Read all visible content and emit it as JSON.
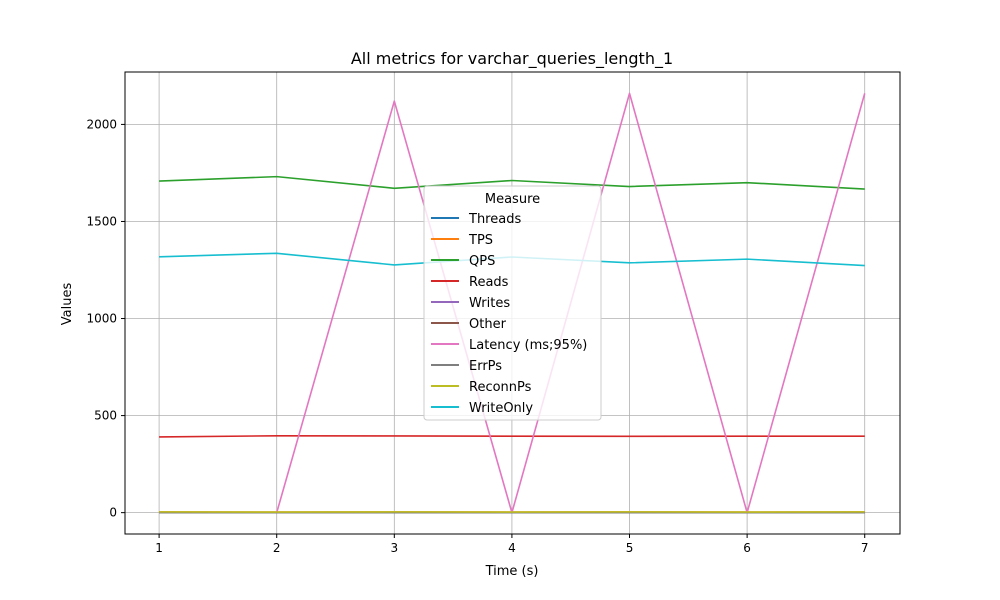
{
  "chart_data": {
    "type": "line",
    "title": "All metrics for varchar_queries_length_1",
    "xlabel": "Time (s)",
    "ylabel": "Values",
    "x": [
      1,
      2,
      3,
      4,
      5,
      6,
      7
    ],
    "xticks": [
      1,
      2,
      3,
      4,
      5,
      6,
      7
    ],
    "yticks": [
      0,
      500,
      1000,
      1500,
      2000
    ],
    "xlim": [
      0.71,
      7.3
    ],
    "ylim": [
      -110,
      2270
    ],
    "grid": true,
    "legend": {
      "title": "Measure",
      "placement": "center"
    },
    "series": [
      {
        "name": "Threads",
        "color": "#1f77b4",
        "values": [
          1,
          1,
          1,
          1,
          1,
          1,
          1
        ]
      },
      {
        "name": "TPS",
        "color": "#ff7f0e",
        "values": [
          4,
          3,
          4,
          3,
          4,
          3,
          4
        ]
      },
      {
        "name": "QPS",
        "color": "#2ca02c",
        "values": [
          1708,
          1731,
          1671,
          1711,
          1680,
          1700,
          1667
        ]
      },
      {
        "name": "Reads",
        "color": "#d62728",
        "values": [
          390,
          396,
          395,
          394,
          393,
          394,
          394
        ]
      },
      {
        "name": "Writes",
        "color": "#9467bd",
        "values": [
          0,
          0,
          0,
          0,
          0,
          0,
          0
        ]
      },
      {
        "name": "Other",
        "color": "#8c564b",
        "values": [
          0,
          0,
          0,
          0,
          0,
          0,
          0
        ]
      },
      {
        "name": "Latency (ms;95%)",
        "color": "#e377c2",
        "values": [
          null,
          0,
          2120,
          0,
          2160,
          0,
          2160
        ]
      },
      {
        "name": "ErrPs",
        "color": "#7f7f7f",
        "values": [
          0,
          0,
          0,
          0,
          0,
          0,
          0
        ]
      },
      {
        "name": "ReconnPs",
        "color": "#bcbd22",
        "values": [
          4,
          3,
          4,
          3,
          4,
          3,
          4
        ]
      },
      {
        "name": "WriteOnly",
        "color": "#17becf",
        "values": [
          1318,
          1336,
          1276,
          1317,
          1287,
          1306,
          1273
        ]
      }
    ]
  }
}
